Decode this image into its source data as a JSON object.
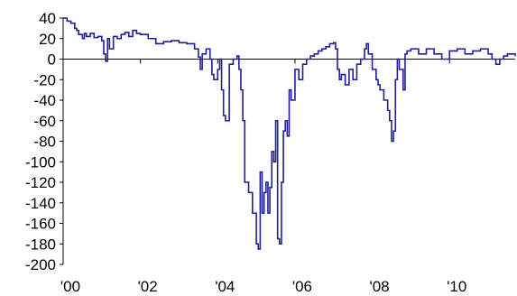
{
  "chart_data": {
    "type": "line",
    "title": "",
    "xlabel": "",
    "ylabel": "",
    "xlim": [
      2000.0,
      2011.7
    ],
    "ylim": [
      -200,
      40
    ],
    "y_ticks": [
      40,
      20,
      0,
      -20,
      -40,
      -60,
      -80,
      -100,
      -120,
      -140,
      -160,
      -180,
      -200
    ],
    "x_ticks": [
      {
        "value": 2000,
        "label": "'00"
      },
      {
        "value": 2002,
        "label": "'02"
      },
      {
        "value": 2004,
        "label": "'04"
      },
      {
        "value": 2006,
        "label": "'06"
      },
      {
        "value": 2008,
        "label": "'08"
      },
      {
        "value": 2010,
        "label": "'10"
      }
    ],
    "grid": false,
    "legend": "none",
    "line_color": "#1f1f99",
    "series": [
      {
        "x": [
          2000.0,
          2000.1,
          2000.2,
          2000.3,
          2000.35,
          2000.4,
          2000.5,
          2000.55,
          2000.6,
          2000.7,
          2000.8,
          2000.9,
          2001.0,
          2001.05,
          2001.1,
          2001.15,
          2001.2,
          2001.3,
          2001.4,
          2001.5,
          2001.6,
          2001.7,
          2001.8,
          2001.9,
          2002.0,
          2002.2,
          2002.4,
          2002.6,
          2002.8,
          2003.0,
          2003.2,
          2003.4,
          2003.5,
          2003.55,
          2003.6,
          2003.7,
          2003.8,
          2003.85,
          2003.9,
          2004.0,
          2004.05,
          2004.1,
          2004.15,
          2004.2,
          2004.3,
          2004.4,
          2004.5,
          2004.55,
          2004.6,
          2004.65,
          2004.7,
          2004.8,
          2004.9,
          2005.0,
          2005.05,
          2005.1,
          2005.15,
          2005.2,
          2005.25,
          2005.3,
          2005.35,
          2005.4,
          2005.45,
          2005.5,
          2005.55,
          2005.6,
          2005.65,
          2005.7,
          2005.75,
          2005.8,
          2005.85,
          2005.9,
          2006.0,
          2006.1,
          2006.2,
          2006.3,
          2006.4,
          2006.5,
          2006.6,
          2006.7,
          2006.8,
          2006.9,
          2007.0,
          2007.05,
          2007.1,
          2007.15,
          2007.2,
          2007.3,
          2007.4,
          2007.5,
          2007.6,
          2007.7,
          2007.8,
          2007.85,
          2007.9,
          2008.0,
          2008.1,
          2008.15,
          2008.2,
          2008.3,
          2008.4,
          2008.45,
          2008.5,
          2008.55,
          2008.6,
          2008.65,
          2008.7,
          2008.8,
          2008.85,
          2008.9,
          2009.0,
          2009.2,
          2009.4,
          2009.6,
          2009.8,
          2010.0,
          2010.2,
          2010.4,
          2010.6,
          2010.8,
          2011.0,
          2011.1,
          2011.2,
          2011.3,
          2011.4,
          2011.5,
          2011.6,
          2011.7
        ],
        "y": [
          40,
          37,
          35,
          30,
          28,
          24,
          20,
          25,
          22,
          25,
          21,
          22,
          18,
          5,
          -2,
          20,
          10,
          22,
          20,
          24,
          26,
          22,
          28,
          25,
          24,
          20,
          15,
          17,
          18,
          16,
          15,
          10,
          2,
          -10,
          5,
          10,
          0,
          -15,
          -20,
          -10,
          0,
          -30,
          -55,
          -60,
          -5,
          0,
          3,
          -10,
          -30,
          -60,
          -120,
          -130,
          -150,
          -180,
          -185,
          -110,
          -150,
          -130,
          -120,
          -150,
          -125,
          -90,
          -100,
          -60,
          -175,
          -180,
          -120,
          -70,
          -60,
          -75,
          -30,
          -40,
          -10,
          -20,
          -5,
          0,
          3,
          5,
          8,
          10,
          12,
          15,
          16,
          10,
          -10,
          -20,
          -15,
          -25,
          -10,
          -20,
          -5,
          0,
          10,
          15,
          5,
          -10,
          -20,
          -25,
          -30,
          -40,
          -50,
          -60,
          -80,
          -70,
          -20,
          0,
          -10,
          -30,
          5,
          8,
          10,
          5,
          10,
          5,
          0,
          8,
          10,
          5,
          8,
          10,
          5,
          0,
          -5,
          0,
          3,
          5,
          5,
          3
        ]
      }
    ]
  }
}
